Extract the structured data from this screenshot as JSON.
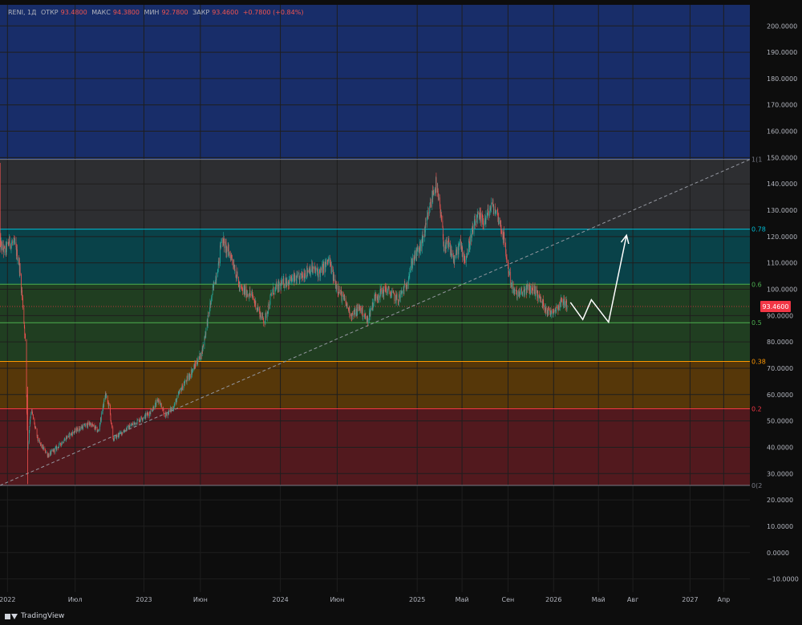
{
  "header": {
    "symbol": "RENI, 1Д",
    "open_label": "ОТКР",
    "open": "93.4800",
    "high_label": "МАКС",
    "high": "94.3800",
    "low_label": "МИН",
    "low": "92.7800",
    "close_label": "ЗАКР",
    "close": "93.4600",
    "change": "+0.7800 (+0.84%)"
  },
  "footer": {
    "brand": "TradingView"
  },
  "colors": {
    "background": "#0d0d0d",
    "up": "#26a69a",
    "down": "#ef5350",
    "price_tag": "#f23645",
    "projection": "#ffffff"
  },
  "chart_data": {
    "type": "candlestick",
    "timeframe": "1D",
    "x_axis": {
      "tick_labels": [
        "2022",
        "Июл",
        "2023",
        "Июн",
        "2024",
        "Июн",
        "2025",
        "Май",
        "Сен",
        "2026",
        "Май",
        "Авг",
        "2027",
        "Апр"
      ],
      "tick_dates": [
        "2022-01-01",
        "2022-07-01",
        "2023-01-01",
        "2023-06-01",
        "2024-01-01",
        "2024-06-01",
        "2025-01-01",
        "2025-05-01",
        "2025-09-01",
        "2026-01-01",
        "2026-05-01",
        "2026-08-01",
        "2027-01-01",
        "2027-04-01"
      ],
      "range": [
        "2021-12-12",
        "2027-06-10"
      ]
    },
    "y_axis": {
      "range": [
        -15,
        208
      ],
      "ticks": [
        -10,
        0,
        10,
        20,
        30,
        40,
        50,
        60,
        70,
        80,
        90,
        100,
        110,
        120,
        130,
        140,
        150,
        160,
        170,
        180,
        190,
        200
      ],
      "tick_labels": [
        "−10.0000",
        "0.0000",
        "10.0000",
        "20.0000",
        "30.0000",
        "40.0000",
        "50.0000",
        "60.0000",
        "70.0000",
        "80.0000",
        "90.0000",
        "100.0000",
        "110.0000",
        "120.0000",
        "130.0000",
        "140.0000",
        "150.0000",
        "160.0000",
        "170.0000",
        "180.0000",
        "190.0000",
        "200.0000"
      ]
    },
    "last_price": {
      "value": 93.46,
      "label": "93.4600"
    },
    "fib_zones": [
      {
        "label": "0(2",
        "from": 25.5,
        "to": 54.6,
        "color": "#f23645"
      },
      {
        "label": "0.2",
        "from": 54.6,
        "to": 72.6,
        "color": "#ff9800"
      },
      {
        "label": "0.38",
        "from": 72.6,
        "to": 87.3,
        "color": "#4caf50"
      },
      {
        "label": "0.5",
        "from": 87.3,
        "to": 101.9,
        "color": "#4caf50"
      },
      {
        "label": "0.6",
        "from": 101.9,
        "to": 122.8,
        "color": "#00bcd4"
      },
      {
        "label": "0.78",
        "from": 122.8,
        "to": 149.3,
        "color": "#787b86"
      },
      {
        "label": "1(1",
        "from": 149.3,
        "to": 208,
        "color": "#2962ff"
      }
    ],
    "fib_lines": [
      {
        "label": "0(2",
        "value": 25.5,
        "color": "#787b86"
      },
      {
        "label": "0.2",
        "value": 54.6,
        "color": "#f23645"
      },
      {
        "label": "0.38",
        "value": 72.6,
        "color": "#ff9800"
      },
      {
        "label": "0.5",
        "value": 87.3,
        "color": "#4caf50"
      },
      {
        "label": "0.6",
        "value": 101.9,
        "color": "#4caf50"
      },
      {
        "label": "0.78",
        "value": 122.8,
        "color": "#00bcd4"
      },
      {
        "label": "1(1",
        "value": 149.3,
        "color": "#787b86"
      }
    ],
    "fib_range": {
      "start": "2021-12-12",
      "end": "2027-06-10"
    },
    "trendline": {
      "from": [
        "2021-12-12",
        25.5
      ],
      "to": [
        "2027-06-10",
        149.3
      ],
      "style": "dashed"
    },
    "projection_path": [
      [
        "2026-02-15",
        95
      ],
      [
        "2026-03-20",
        88.5
      ],
      [
        "2026-04-12",
        96
      ],
      [
        "2026-05-28",
        87.5
      ],
      [
        "2026-07-15",
        120.5
      ]
    ],
    "price_path": [
      [
        "2021-12-10",
        118
      ],
      [
        "2021-12-25",
        114
      ],
      [
        "2022-01-05",
        118
      ],
      [
        "2022-01-20",
        117
      ],
      [
        "2022-02-01",
        110
      ],
      [
        "2022-02-10",
        96
      ],
      [
        "2022-02-18",
        80
      ],
      [
        "2022-02-24",
        40
      ],
      [
        "2022-03-05",
        55
      ],
      [
        "2022-03-15",
        48
      ],
      [
        "2022-03-25",
        42
      ],
      [
        "2022-04-20",
        37
      ],
      [
        "2022-05-15",
        40
      ],
      [
        "2022-06-10",
        44
      ],
      [
        "2022-07-10",
        47
      ],
      [
        "2022-08-10",
        49
      ],
      [
        "2022-09-01",
        46
      ],
      [
        "2022-09-20",
        60
      ],
      [
        "2022-10-01",
        55
      ],
      [
        "2022-10-10",
        43
      ],
      [
        "2022-11-15",
        47
      ],
      [
        "2022-12-15",
        50
      ],
      [
        "2023-01-15",
        53
      ],
      [
        "2023-02-10",
        58
      ],
      [
        "2023-02-25",
        52
      ],
      [
        "2023-03-20",
        55
      ],
      [
        "2023-04-10",
        62
      ],
      [
        "2023-05-10",
        69
      ],
      [
        "2023-06-05",
        76
      ],
      [
        "2023-06-20",
        88
      ],
      [
        "2023-07-05",
        100
      ],
      [
        "2023-07-20",
        110
      ],
      [
        "2023-07-28",
        120
      ],
      [
        "2023-08-10",
        115
      ],
      [
        "2023-08-25",
        112
      ],
      [
        "2023-09-15",
        100
      ],
      [
        "2023-10-15",
        98
      ],
      [
        "2023-11-10",
        90
      ],
      [
        "2023-11-20",
        88
      ],
      [
        "2023-12-10",
        99
      ],
      [
        "2024-01-15",
        103
      ],
      [
        "2024-02-20",
        104
      ],
      [
        "2024-03-20",
        108
      ],
      [
        "2024-04-15",
        106
      ],
      [
        "2024-05-10",
        111
      ],
      [
        "2024-05-25",
        103
      ],
      [
        "2024-06-15",
        97
      ],
      [
        "2024-07-10",
        90
      ],
      [
        "2024-08-01",
        93
      ],
      [
        "2024-08-20",
        88
      ],
      [
        "2024-09-10",
        97
      ],
      [
        "2024-10-10",
        100
      ],
      [
        "2024-11-10",
        96
      ],
      [
        "2024-12-01",
        101
      ],
      [
        "2024-12-20",
        111
      ],
      [
        "2025-01-10",
        116
      ],
      [
        "2025-01-25",
        124
      ],
      [
        "2025-02-08",
        134
      ],
      [
        "2025-02-20",
        140
      ],
      [
        "2025-03-05",
        128
      ],
      [
        "2025-03-15",
        115
      ],
      [
        "2025-03-25",
        117
      ],
      [
        "2025-04-10",
        111
      ],
      [
        "2025-04-25",
        117
      ],
      [
        "2025-05-10",
        111
      ],
      [
        "2025-05-25",
        120
      ],
      [
        "2025-06-10",
        127
      ],
      [
        "2025-07-01",
        126
      ],
      [
        "2025-07-20",
        132
      ],
      [
        "2025-08-05",
        128
      ],
      [
        "2025-08-20",
        120
      ],
      [
        "2025-09-01",
        108
      ],
      [
        "2025-09-15",
        99
      ],
      [
        "2025-10-01",
        98
      ],
      [
        "2025-10-20",
        100
      ],
      [
        "2025-11-10",
        100
      ],
      [
        "2025-12-01",
        95
      ],
      [
        "2025-12-20",
        91
      ],
      [
        "2026-01-10",
        93
      ],
      [
        "2026-01-25",
        96
      ],
      [
        "2026-02-08",
        93.46
      ]
    ]
  }
}
